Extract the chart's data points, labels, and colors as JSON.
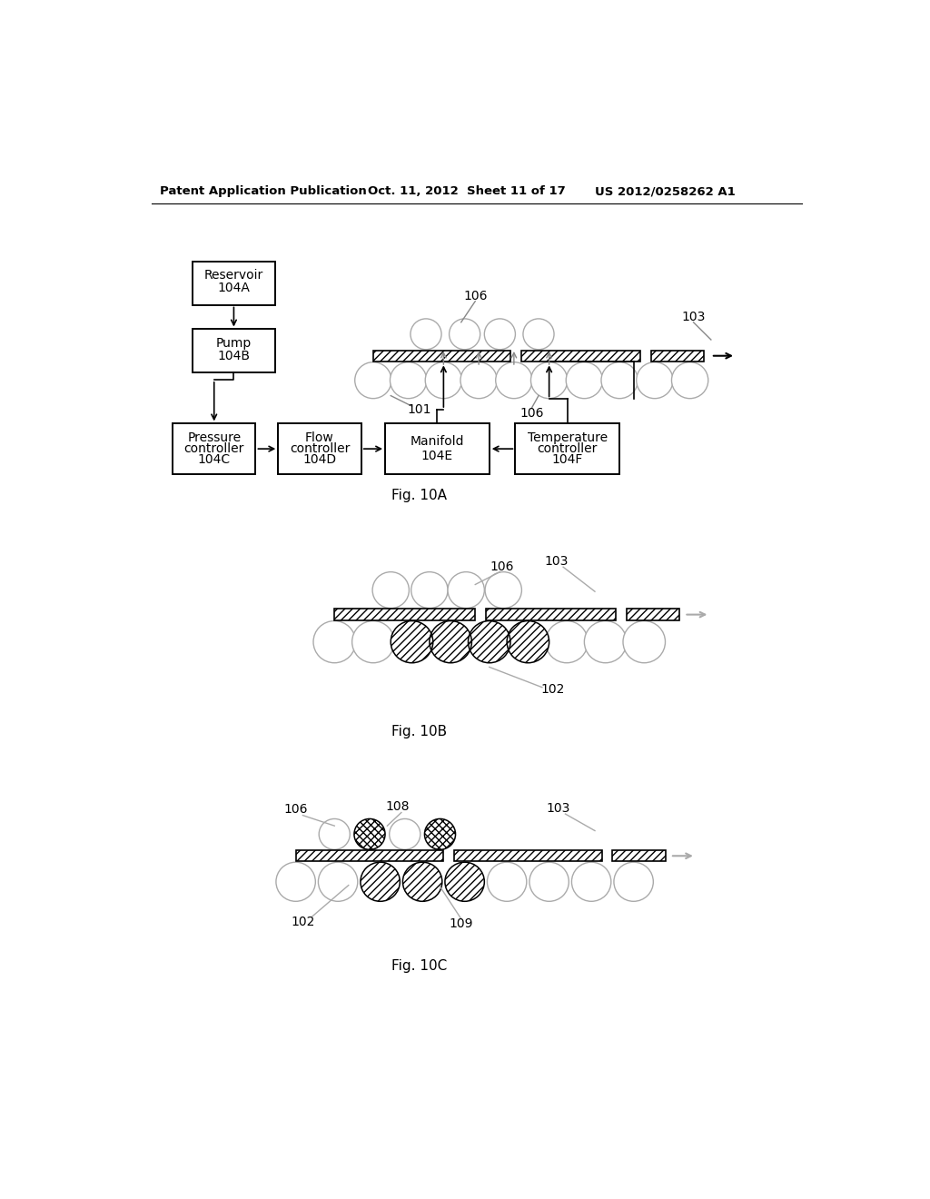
{
  "header_left": "Patent Application Publication",
  "header_mid": "Oct. 11, 2012  Sheet 11 of 17",
  "header_right": "US 2012/0258262 A1",
  "bg_color": "#ffffff"
}
